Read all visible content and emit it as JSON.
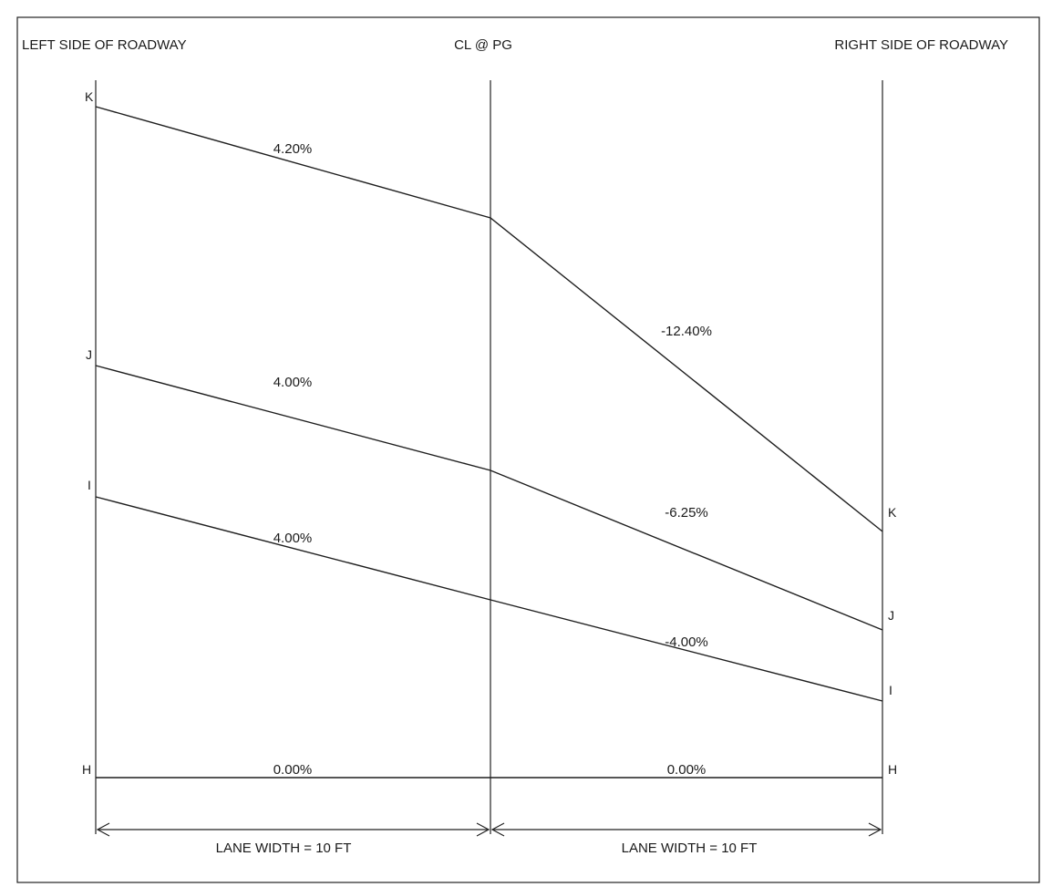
{
  "headers": {
    "left": "LEFT SIDE OF ROADWAY",
    "center": "CL @ PG",
    "right": "RIGHT SIDE OF ROADWAY"
  },
  "profiles": [
    {
      "left_point": "K",
      "right_point": "K",
      "left_slope": "4.20%",
      "right_slope": "-12.40%"
    },
    {
      "left_point": "J",
      "right_point": "J",
      "left_slope": "4.00%",
      "right_slope": "-6.25%"
    },
    {
      "left_point": "I",
      "right_point": "I",
      "left_slope": "4.00%",
      "right_slope": "-4.00%"
    },
    {
      "left_point": "H",
      "right_point": "H",
      "left_slope": "0.00%",
      "right_slope": "0.00%"
    }
  ],
  "dimensions": {
    "left": "LANE WIDTH = 10 FT",
    "right": "LANE WIDTH = 10 FT"
  },
  "colors": {
    "line": "#222222",
    "text": "#1a1a1a",
    "background": "#ffffff"
  }
}
